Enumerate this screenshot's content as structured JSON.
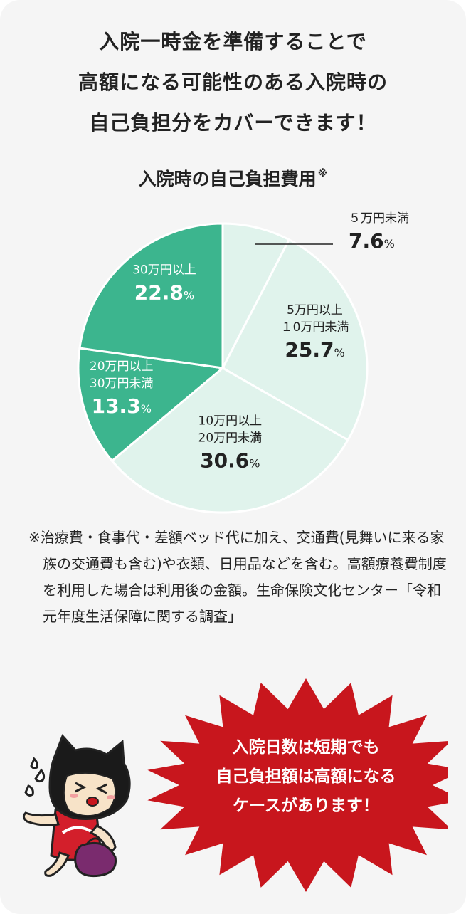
{
  "headline": {
    "lines": [
      "入院一時金を準備することで",
      "高額になる可能性のある入院時の",
      "自己負担分をカバーできます！"
    ]
  },
  "chart_data": {
    "type": "pie",
    "title": "入院時の自己負担費用",
    "title_mark": "※",
    "start": "12 o'clock, clockwise",
    "slices": [
      {
        "label_lines": [
          "５万円未満"
        ],
        "value": 7.6,
        "value_text": "7.6",
        "unit": "%",
        "color": "#e0f3ec",
        "text_color": "#222222",
        "label_position": "outside"
      },
      {
        "label_lines": [
          "5万円以上",
          "１0万円未満"
        ],
        "value": 25.7,
        "value_text": "25.7",
        "unit": "%",
        "color": "#e0f3ec",
        "text_color": "#222222",
        "label_position": "inside"
      },
      {
        "label_lines": [
          "10万円以上",
          "20万円未満"
        ],
        "value": 30.6,
        "value_text": "30.6",
        "unit": "%",
        "color": "#e0f3ec",
        "text_color": "#222222",
        "label_position": "inside"
      },
      {
        "label_lines": [
          "20万円以上",
          "30万円未満"
        ],
        "value": 13.3,
        "value_text": "13.3",
        "unit": "%",
        "color": "#3cb58e",
        "text_color": "#ffffff",
        "label_position": "inside-outlined"
      },
      {
        "label_lines": [
          "30万円以上"
        ],
        "value": 22.8,
        "value_text": "22.8",
        "unit": "%",
        "color": "#3cb58e",
        "text_color": "#ffffff",
        "label_position": "inside"
      }
    ],
    "slice_border_color": "#ffffff"
  },
  "note": "※治療費・食事代・差額ベッド代に加え、交通費(見舞いに来る家族の交通費も含む)や衣類、日用品などを含む。高額療養費制度を利用した場合は利用後の金額。生命保険文化センター「令和元年度生活保障に関する調査」",
  "callout": {
    "lines": [
      "入院日数は短期でも",
      "自己負担額は高額になる",
      "ケースがあります！"
    ],
    "color": "#c8161d"
  },
  "mascot": {
    "icon": "cat-girl-mascot-icon"
  }
}
